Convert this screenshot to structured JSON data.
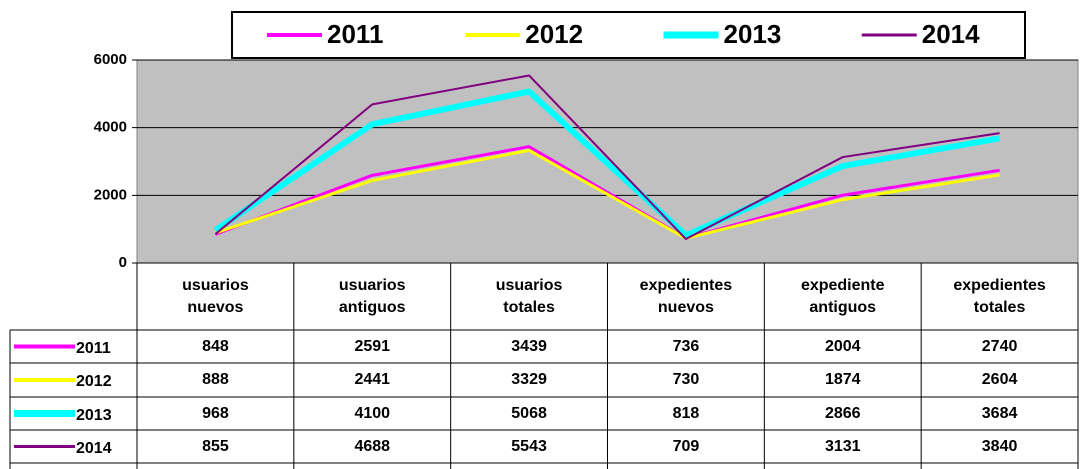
{
  "chart_data": {
    "type": "line",
    "categories": [
      "usuarios nuevos",
      "usuarios antiguos",
      "usuarios totales",
      "expedientes nuevos",
      "expediente antiguos",
      "expedientes totales"
    ],
    "series": [
      {
        "name": "2011",
        "color": "#ff00ff",
        "width": 3,
        "values": [
          848,
          2591,
          3439,
          736,
          2004,
          2740
        ]
      },
      {
        "name": "2012",
        "color": "#ffff00",
        "width": 3,
        "values": [
          888,
          2441,
          3329,
          730,
          1874,
          2604
        ]
      },
      {
        "name": "2013",
        "color": "#00ffff",
        "width": 6,
        "values": [
          968,
          4100,
          5068,
          818,
          2866,
          3684
        ]
      },
      {
        "name": "2014",
        "color": "#800080",
        "width": 2,
        "values": [
          855,
          4688,
          5543,
          709,
          3131,
          3840
        ]
      }
    ],
    "ylim": [
      0,
      6000
    ],
    "yticks": [
      0,
      2000,
      4000,
      6000
    ],
    "grid": true,
    "legend": "top",
    "data_table": true
  }
}
